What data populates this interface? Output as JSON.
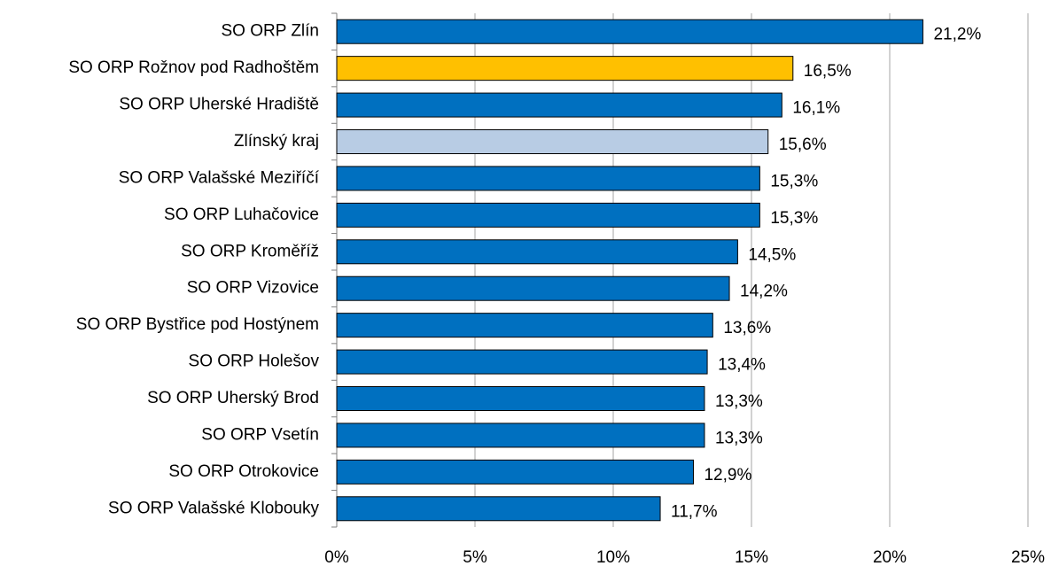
{
  "chart_data": {
    "type": "hbar",
    "categories": [
      "SO ORP Zlín",
      "SO ORP Rožnov pod Radhoštěm",
      "SO ORP Uherské Hradiště",
      "Zlínský kraj",
      "SO ORP Valašské Meziříčí",
      "SO ORP Luhačovice",
      "SO ORP Kroměříž",
      "SO ORP Vizovice",
      "SO ORP Bystřice pod Hostýnem",
      "SO ORP Holešov",
      "SO ORP Uherský Brod",
      "SO ORP Vsetín",
      "SO ORP Otrokovice",
      "SO ORP Valašské Klobouky"
    ],
    "values": [
      21.2,
      16.5,
      16.1,
      15.6,
      15.3,
      15.3,
      14.5,
      14.2,
      13.6,
      13.4,
      13.3,
      13.3,
      12.9,
      11.7
    ],
    "value_labels": [
      "21,2%",
      "16,5%",
      "16,1%",
      "15,6%",
      "15,3%",
      "15,3%",
      "14,5%",
      "14,2%",
      "13,6%",
      "13,4%",
      "13,3%",
      "13,3%",
      "12,9%",
      "11,7%"
    ],
    "colors": [
      "#0070c0",
      "#ffc000",
      "#0070c0",
      "#b8cce4",
      "#0070c0",
      "#0070c0",
      "#0070c0",
      "#0070c0",
      "#0070c0",
      "#0070c0",
      "#0070c0",
      "#0070c0",
      "#0070c0",
      "#0070c0"
    ],
    "xlim": [
      0,
      25
    ],
    "xticks": [
      {
        "value": 0,
        "label": "0%"
      },
      {
        "value": 5,
        "label": "5%"
      },
      {
        "value": 10,
        "label": "10%"
      },
      {
        "value": 15,
        "label": "15%"
      },
      {
        "value": 20,
        "label": "20%"
      },
      {
        "value": 25,
        "label": "25%"
      }
    ],
    "grid": true
  }
}
